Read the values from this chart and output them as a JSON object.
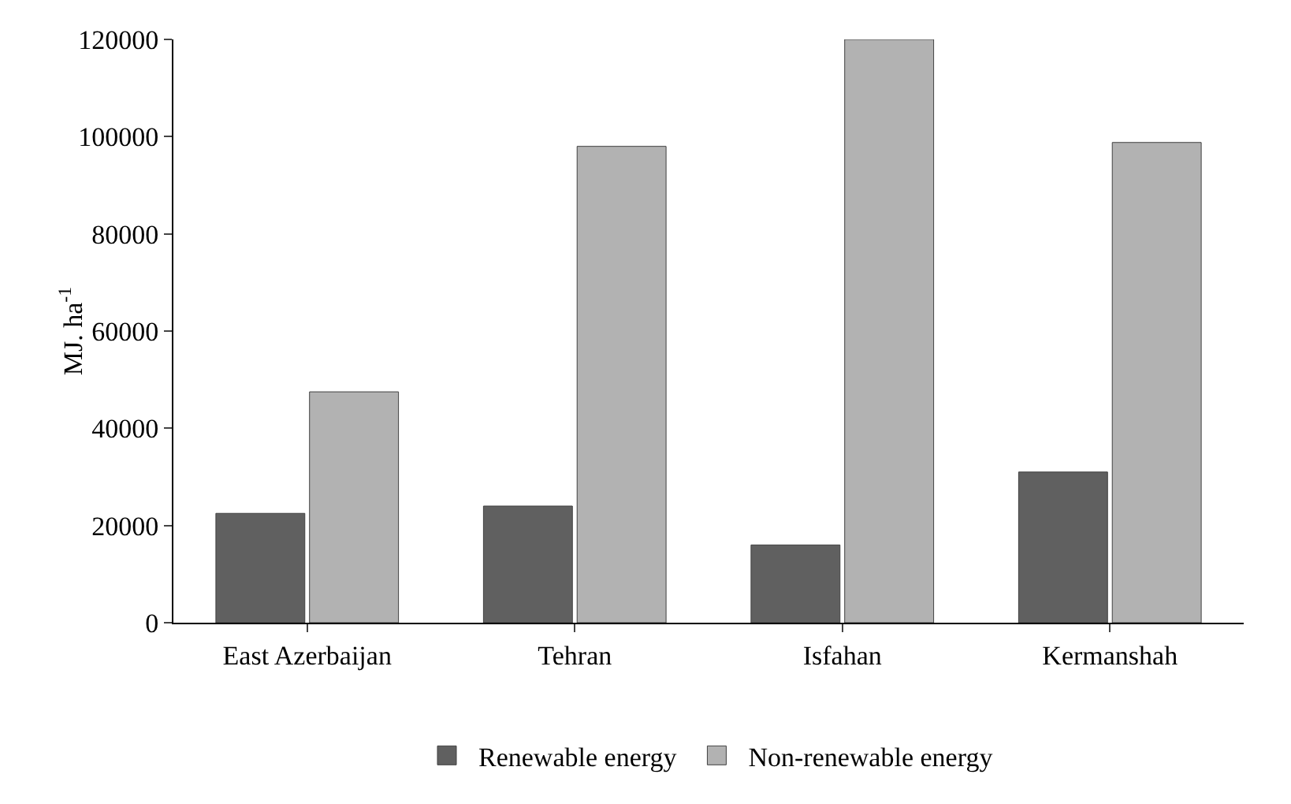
{
  "chart_data": {
    "type": "bar",
    "ylabel": "MJ. ha$^{-1}$",
    "categories": [
      "East Azerbaijan",
      "Tehran",
      "Isfahan",
      "Kermanshah"
    ],
    "series": [
      {
        "name": "Renewable energy",
        "color": "#606060",
        "values": [
          22500,
          24000,
          16000,
          31000
        ]
      },
      {
        "name": "Non-renewable energy",
        "color": "#b2b2b2",
        "values": [
          47500,
          98000,
          120000,
          98800
        ]
      }
    ],
    "ylim": [
      0,
      120000
    ],
    "yticks": [
      0,
      20000,
      40000,
      60000,
      80000,
      100000,
      120000
    ],
    "grid": false,
    "legend": "bottom"
  }
}
